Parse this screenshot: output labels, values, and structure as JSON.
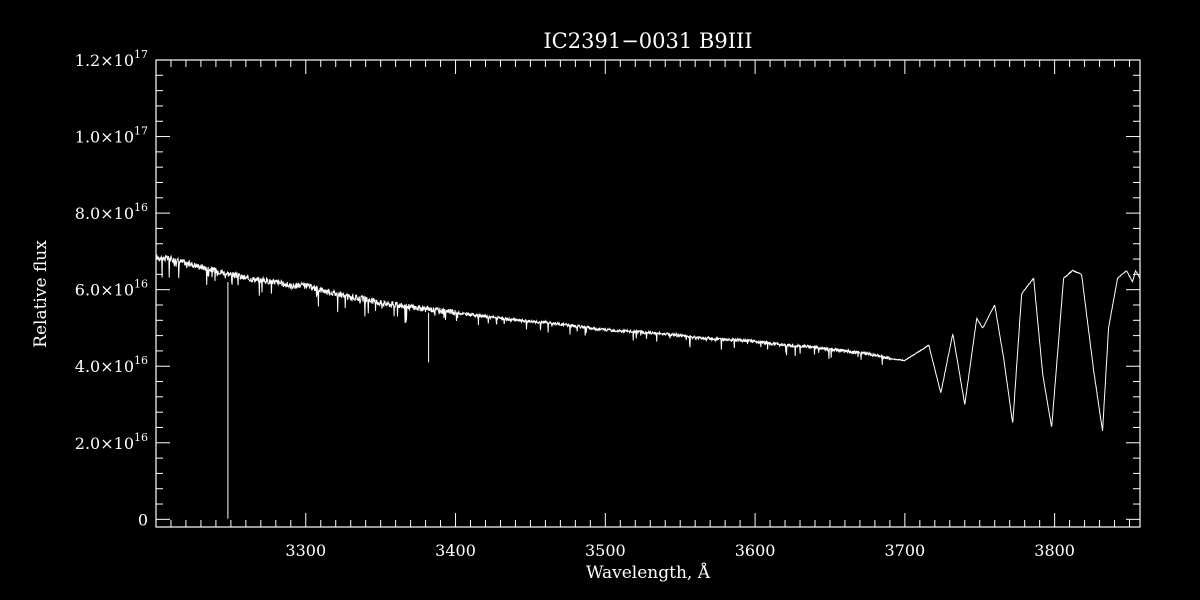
{
  "chart_data": {
    "type": "line",
    "title": "IC2391−0031   B9III",
    "xlabel": "Wavelength, Å",
    "ylabel": "Relative flux",
    "xlim": [
      3200,
      3857
    ],
    "ylim": [
      -2000000000000000.0,
      1.2e+17
    ],
    "grid": false,
    "legend": "none",
    "x_major_ticks": [
      3300,
      3400,
      3500,
      3600,
      3700,
      3800
    ],
    "x_tick_labels": [
      "3300",
      "3400",
      "3500",
      "3600",
      "3700",
      "3800"
    ],
    "x_minor_step": 10,
    "y_major_ticks": [
      0,
      2e+16,
      4e+16,
      6e+16,
      8e+16,
      1e+17,
      1.2e+17
    ],
    "y_tick_labels": [
      {
        "mantissa": "0",
        "exponent": ""
      },
      {
        "mantissa": "2.0×10",
        "exponent": "16"
      },
      {
        "mantissa": "4.0×10",
        "exponent": "16"
      },
      {
        "mantissa": "6.0×10",
        "exponent": "16"
      },
      {
        "mantissa": "8.0×10",
        "exponent": "16"
      },
      {
        "mantissa": "1.0×10",
        "exponent": "17"
      },
      {
        "mantissa": "1.2×10",
        "exponent": "17"
      }
    ],
    "y_minor_step": 4000000000000000.0,
    "series": [
      {
        "color": "#ffffff",
        "x": [
          3200,
          3210,
          3220,
          3230,
          3240,
          3250,
          3260,
          3270,
          3280,
          3290,
          3300,
          3310,
          3320,
          3330,
          3340,
          3350,
          3360,
          3370,
          3380,
          3390,
          3400,
          3420,
          3440,
          3460,
          3480,
          3500,
          3520,
          3540,
          3560,
          3580,
          3600,
          3620,
          3640,
          3660,
          3680,
          3690,
          3700,
          3708,
          3716,
          3724,
          3732,
          3740,
          3748,
          3752,
          3760,
          3766,
          3772,
          3778,
          3786,
          3792,
          3798,
          3806,
          3812,
          3818,
          3826,
          3832,
          3836,
          3842,
          3848,
          3852,
          3854,
          3857
        ],
        "y": [
          6.85e+16,
          6.8e+16,
          6.7e+16,
          6.6e+16,
          6.5e+16,
          6.4e+16,
          6.3e+16,
          6.25e+16,
          6.2e+16,
          6.1e+16,
          6.1e+16,
          6e+16,
          5.9e+16,
          5.8e+16,
          5.75e+16,
          5.65e+16,
          5.6e+16,
          5.55e+16,
          5.5e+16,
          5.45e+16,
          5.4e+16,
          5.3e+16,
          5.2e+16,
          5.15e+16,
          5.05e+16,
          4.95e+16,
          4.9e+16,
          4.85e+16,
          4.75e+16,
          4.7e+16,
          4.65e+16,
          4.55e+16,
          4.5e+16,
          4.4e+16,
          4.3e+16,
          4.2e+16,
          4.15e+16,
          4.35e+16,
          4.55e+16,
          3.3e+16,
          4.85e+16,
          3e+16,
          5.25e+16,
          5e+16,
          5.6e+16,
          4.2e+16,
          2.5e+16,
          5.9e+16,
          6.3e+16,
          3.8e+16,
          2.4e+16,
          6.3e+16,
          6.5e+16,
          6.4e+16,
          3.9e+16,
          2.3e+16,
          5e+16,
          6.3e+16,
          6.5e+16,
          6.2e+16,
          6.5e+16,
          6.3e+16
        ]
      }
    ],
    "spikes": [
      {
        "x": 3248,
        "y_top": 6.2e+16,
        "y_bottom": 200000000000000.0
      },
      {
        "x": 3382,
        "y_top": 5.4e+16,
        "y_bottom": 4.1e+16
      }
    ]
  }
}
